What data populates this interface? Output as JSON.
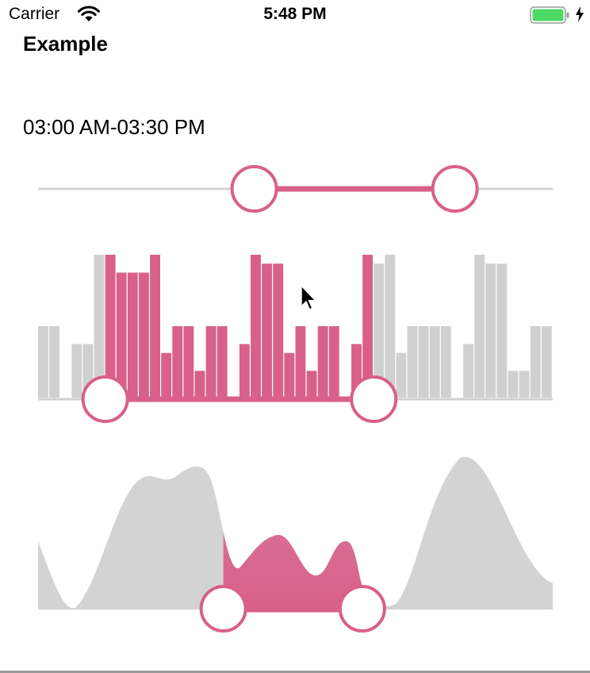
{
  "status_bar": {
    "carrier": "Carrier",
    "time": "5:48 PM"
  },
  "header": {
    "title": "Example"
  },
  "time_range": {
    "label": "03:00 AM-03:30 PM"
  },
  "colors": {
    "accent": "#d9608a",
    "track": "#d3d3d3",
    "bar_inactive": "#d0d0d0",
    "battery": "#4cd964"
  },
  "range_slider": {
    "lower": 0.42,
    "upper": 0.81
  },
  "histogram": {
    "values": [
      4,
      4,
      0,
      3,
      3,
      8,
      8,
      7,
      7,
      7,
      8,
      2.5,
      4,
      4,
      1.5,
      4,
      4,
      0,
      3,
      8,
      7.5,
      7.5,
      2.5,
      4,
      1.5,
      4,
      4,
      0,
      3,
      8,
      7.5,
      8,
      2.5,
      4,
      4,
      4,
      4,
      0,
      3,
      8,
      7.5,
      7.5,
      1.5,
      1.5,
      4,
      4
    ],
    "max": 8,
    "selected_start": 6,
    "selected_end": 30
  },
  "area_chart": {
    "selected_start": 0.36,
    "selected_end": 0.63
  },
  "icons": [
    "wifi-icon",
    "battery-icon",
    "charging-bolt-icon",
    "cursor-icon"
  ]
}
